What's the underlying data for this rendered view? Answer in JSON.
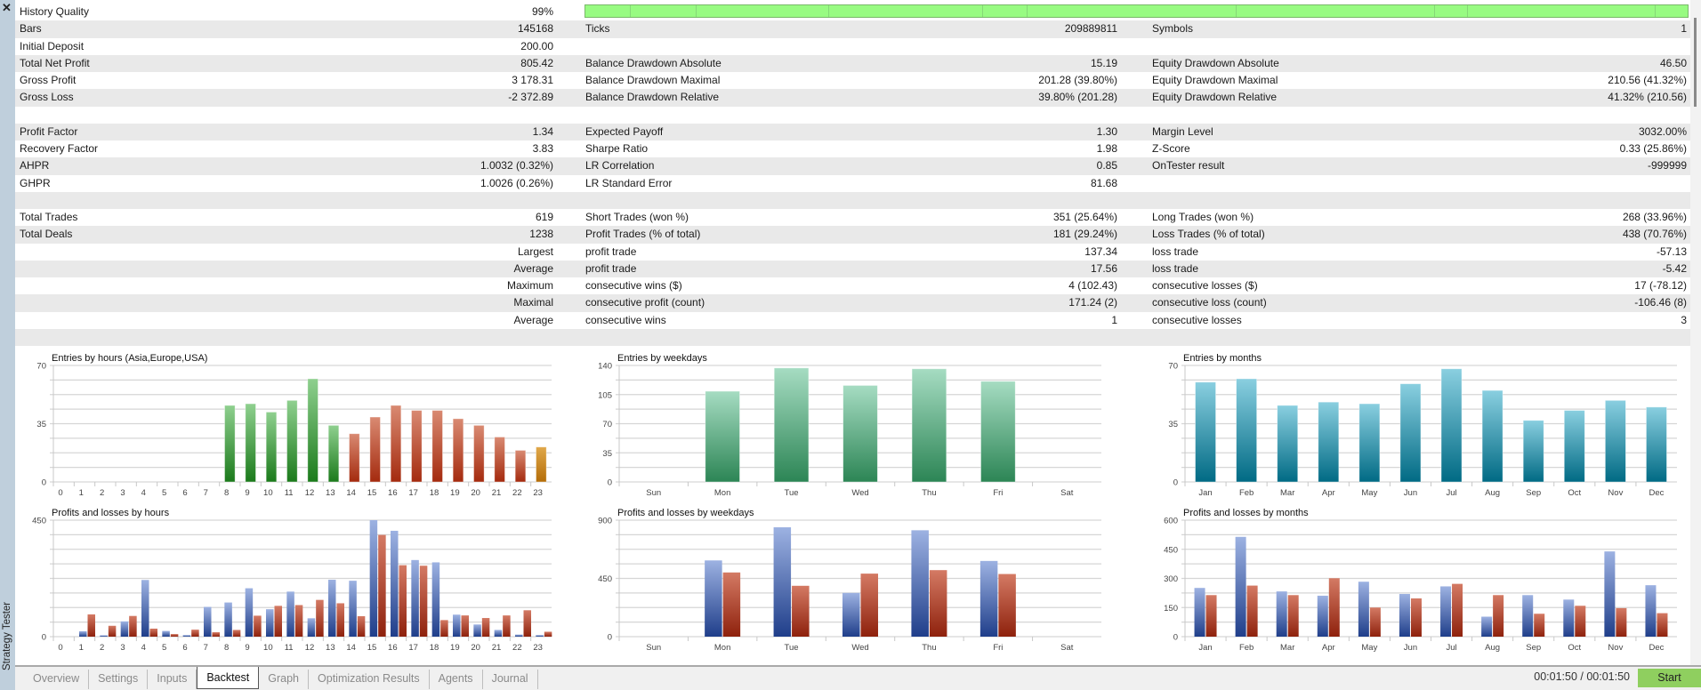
{
  "window": {
    "side_title": "Strategy Tester",
    "close_icon": "close-icon"
  },
  "stats": {
    "history_quality_fraction": 0.99,
    "rows": [
      [
        "History Quality",
        "99%",
        "",
        "",
        "",
        ""
      ],
      [
        "Bars",
        "145168",
        "Ticks",
        "209889811",
        "Symbols",
        "1"
      ],
      [
        "Initial Deposit",
        "200.00",
        "",
        "",
        "",
        ""
      ],
      [
        "Total Net Profit",
        "805.42",
        "Balance Drawdown Absolute",
        "15.19",
        "Equity Drawdown Absolute",
        "46.50"
      ],
      [
        "Gross Profit",
        "3 178.31",
        "Balance Drawdown Maximal",
        "201.28 (39.80%)",
        "Equity Drawdown Maximal",
        "210.56 (41.32%)"
      ],
      [
        "Gross Loss",
        "-2 372.89",
        "Balance Drawdown Relative",
        "39.80% (201.28)",
        "Equity Drawdown Relative",
        "41.32% (210.56)"
      ],
      [
        "",
        "",
        "",
        "",
        "",
        ""
      ],
      [
        "Profit Factor",
        "1.34",
        "Expected Payoff",
        "1.30",
        "Margin Level",
        "3032.00%"
      ],
      [
        "Recovery Factor",
        "3.83",
        "Sharpe Ratio",
        "1.98",
        "Z-Score",
        "0.33 (25.86%)"
      ],
      [
        "AHPR",
        "1.0032 (0.32%)",
        "LR Correlation",
        "0.85",
        "OnTester result",
        "-999999"
      ],
      [
        "GHPR",
        "1.0026 (0.26%)",
        "LR Standard Error",
        "81.68",
        "",
        ""
      ],
      [
        "",
        "",
        "",
        "",
        "",
        ""
      ],
      [
        "Total Trades",
        "619",
        "Short Trades (won %)",
        "351 (25.64%)",
        "Long Trades (won %)",
        "268 (33.96%)"
      ],
      [
        "Total Deals",
        "1238",
        "Profit Trades (% of total)",
        "181 (29.24%)",
        "Loss Trades (% of total)",
        "438 (70.76%)"
      ],
      [
        "",
        "Largest",
        "profit trade",
        "137.34",
        "loss trade",
        "-57.13"
      ],
      [
        "",
        "Average",
        "profit trade",
        "17.56",
        "loss trade",
        "-5.42"
      ],
      [
        "",
        "Maximum",
        "consecutive wins ($)",
        "4 (102.43)",
        "consecutive losses ($)",
        "17 (-78.12)"
      ],
      [
        "",
        "Maximal",
        "consecutive profit (count)",
        "171.24 (2)",
        "consecutive loss (count)",
        "-106.46 (8)"
      ],
      [
        "",
        "Average",
        "consecutive wins",
        "1",
        "consecutive losses",
        "3"
      ],
      [
        "",
        "",
        "",
        "",
        "",
        ""
      ]
    ]
  },
  "chart_data": [
    {
      "type": "bar",
      "title": "Entries by hours (Asia,Europe,USA)",
      "ylim": [
        0,
        70
      ],
      "yticks": [
        "0",
        "35",
        "70"
      ],
      "categories": [
        "0",
        "1",
        "2",
        "3",
        "4",
        "5",
        "6",
        "7",
        "8",
        "9",
        "10",
        "11",
        "12",
        "13",
        "14",
        "15",
        "16",
        "17",
        "18",
        "19",
        "20",
        "21",
        "22",
        "23"
      ],
      "values": [
        0,
        0,
        0,
        0,
        0,
        0,
        0,
        0,
        46,
        47,
        42,
        49,
        62,
        34,
        29,
        39,
        46,
        43,
        43,
        38,
        34,
        27,
        19,
        21
      ],
      "colors": [
        "#1b7a1b",
        "#8fd08f",
        "#a42a0e",
        "#d98a72",
        "#b46d08",
        "#e0a84a"
      ]
    },
    {
      "type": "bar",
      "title": "Entries by weekdays",
      "ylim": [
        0,
        140
      ],
      "yticks": [
        "0",
        "35",
        "70",
        "105",
        "140"
      ],
      "categories": [
        "Sun",
        "Mon",
        "Tue",
        "Wed",
        "Thu",
        "Fri",
        "Sat"
      ],
      "values": [
        0,
        109,
        137,
        116,
        136,
        121,
        0
      ],
      "colors": [
        "#2c8555",
        "#a6dcc2"
      ]
    },
    {
      "type": "bar",
      "title": "Entries by months",
      "ylim": [
        0,
        70
      ],
      "yticks": [
        "0",
        "35",
        "70"
      ],
      "categories": [
        "Jan",
        "Feb",
        "Mar",
        "Apr",
        "May",
        "Jun",
        "Jul",
        "Aug",
        "Sep",
        "Oct",
        "Nov",
        "Dec"
      ],
      "values": [
        60,
        62,
        46,
        48,
        47,
        59,
        68,
        55,
        37,
        43,
        49,
        45
      ],
      "colors": [
        "#006a84",
        "#8acfe0"
      ]
    },
    {
      "type": "bar",
      "title": "Profits and losses by hours",
      "ylim": [
        0,
        450
      ],
      "yticks": [
        "0",
        "450"
      ],
      "categories": [
        "0",
        "1",
        "2",
        "3",
        "4",
        "5",
        "6",
        "7",
        "8",
        "9",
        "10",
        "11",
        "12",
        "13",
        "14",
        "15",
        "16",
        "17",
        "18",
        "19",
        "20",
        "21",
        "22",
        "23"
      ],
      "series": [
        {
          "name": "Profits",
          "values": [
            0,
            21,
            5,
            59,
            219,
            22,
            6,
            115,
            132,
            187,
            106,
            174,
            71,
            220,
            216,
            450,
            409,
            296,
            287,
            85,
            47,
            26,
            8,
            6
          ]
        },
        {
          "name": "Losses",
          "values": [
            0,
            86,
            42,
            80,
            31,
            10,
            27,
            17,
            26,
            81,
            119,
            122,
            142,
            129,
            79,
            393,
            276,
            274,
            64,
            82,
            72,
            82,
            102,
            19
          ]
        }
      ],
      "colors": [
        "#1f3e8a",
        "#9db2e2",
        "#8e210c",
        "#d47a64"
      ]
    },
    {
      "type": "bar",
      "title": "Profits and losses by weekdays",
      "ylim": [
        0,
        900
      ],
      "yticks": [
        "0",
        "450",
        "900"
      ],
      "categories": [
        "Sun",
        "Mon",
        "Tue",
        "Wed",
        "Thu",
        "Fri",
        "Sat"
      ],
      "series": [
        {
          "name": "Profits",
          "values": [
            0,
            589,
            845,
            338,
            822,
            585,
            0
          ]
        },
        {
          "name": "Losses",
          "values": [
            0,
            496,
            393,
            487,
            514,
            484,
            0
          ]
        }
      ],
      "colors": [
        "#1f3e8a",
        "#9db2e2",
        "#8e210c",
        "#d47a64"
      ]
    },
    {
      "type": "bar",
      "title": "Profits and losses by months",
      "ylim": [
        0,
        600
      ],
      "yticks": [
        "0",
        "150",
        "300",
        "450",
        "600"
      ],
      "categories": [
        "Jan",
        "Feb",
        "Mar",
        "Apr",
        "May",
        "Jun",
        "Jul",
        "Aug",
        "Sep",
        "Oct",
        "Nov",
        "Dec"
      ],
      "series": [
        {
          "name": "Profits",
          "values": [
            251,
            514,
            233,
            211,
            283,
            220,
            259,
            103,
            214,
            191,
            439,
            265
          ]
        },
        {
          "name": "Losses",
          "values": [
            214,
            263,
            214,
            301,
            150,
            197,
            272,
            214,
            118,
            159,
            147,
            121
          ]
        }
      ],
      "colors": [
        "#1f3e8a",
        "#9db2e2",
        "#8e210c",
        "#d47a64"
      ]
    }
  ],
  "tabs": [
    {
      "label": "Overview"
    },
    {
      "label": "Settings"
    },
    {
      "label": "Inputs"
    },
    {
      "label": "Backtest",
      "active": true
    },
    {
      "label": "Graph"
    },
    {
      "label": "Optimization Results"
    },
    {
      "label": "Agents"
    },
    {
      "label": "Journal"
    }
  ],
  "status": {
    "timer": "00:01:50 / 00:01:50",
    "start_label": "Start"
  }
}
